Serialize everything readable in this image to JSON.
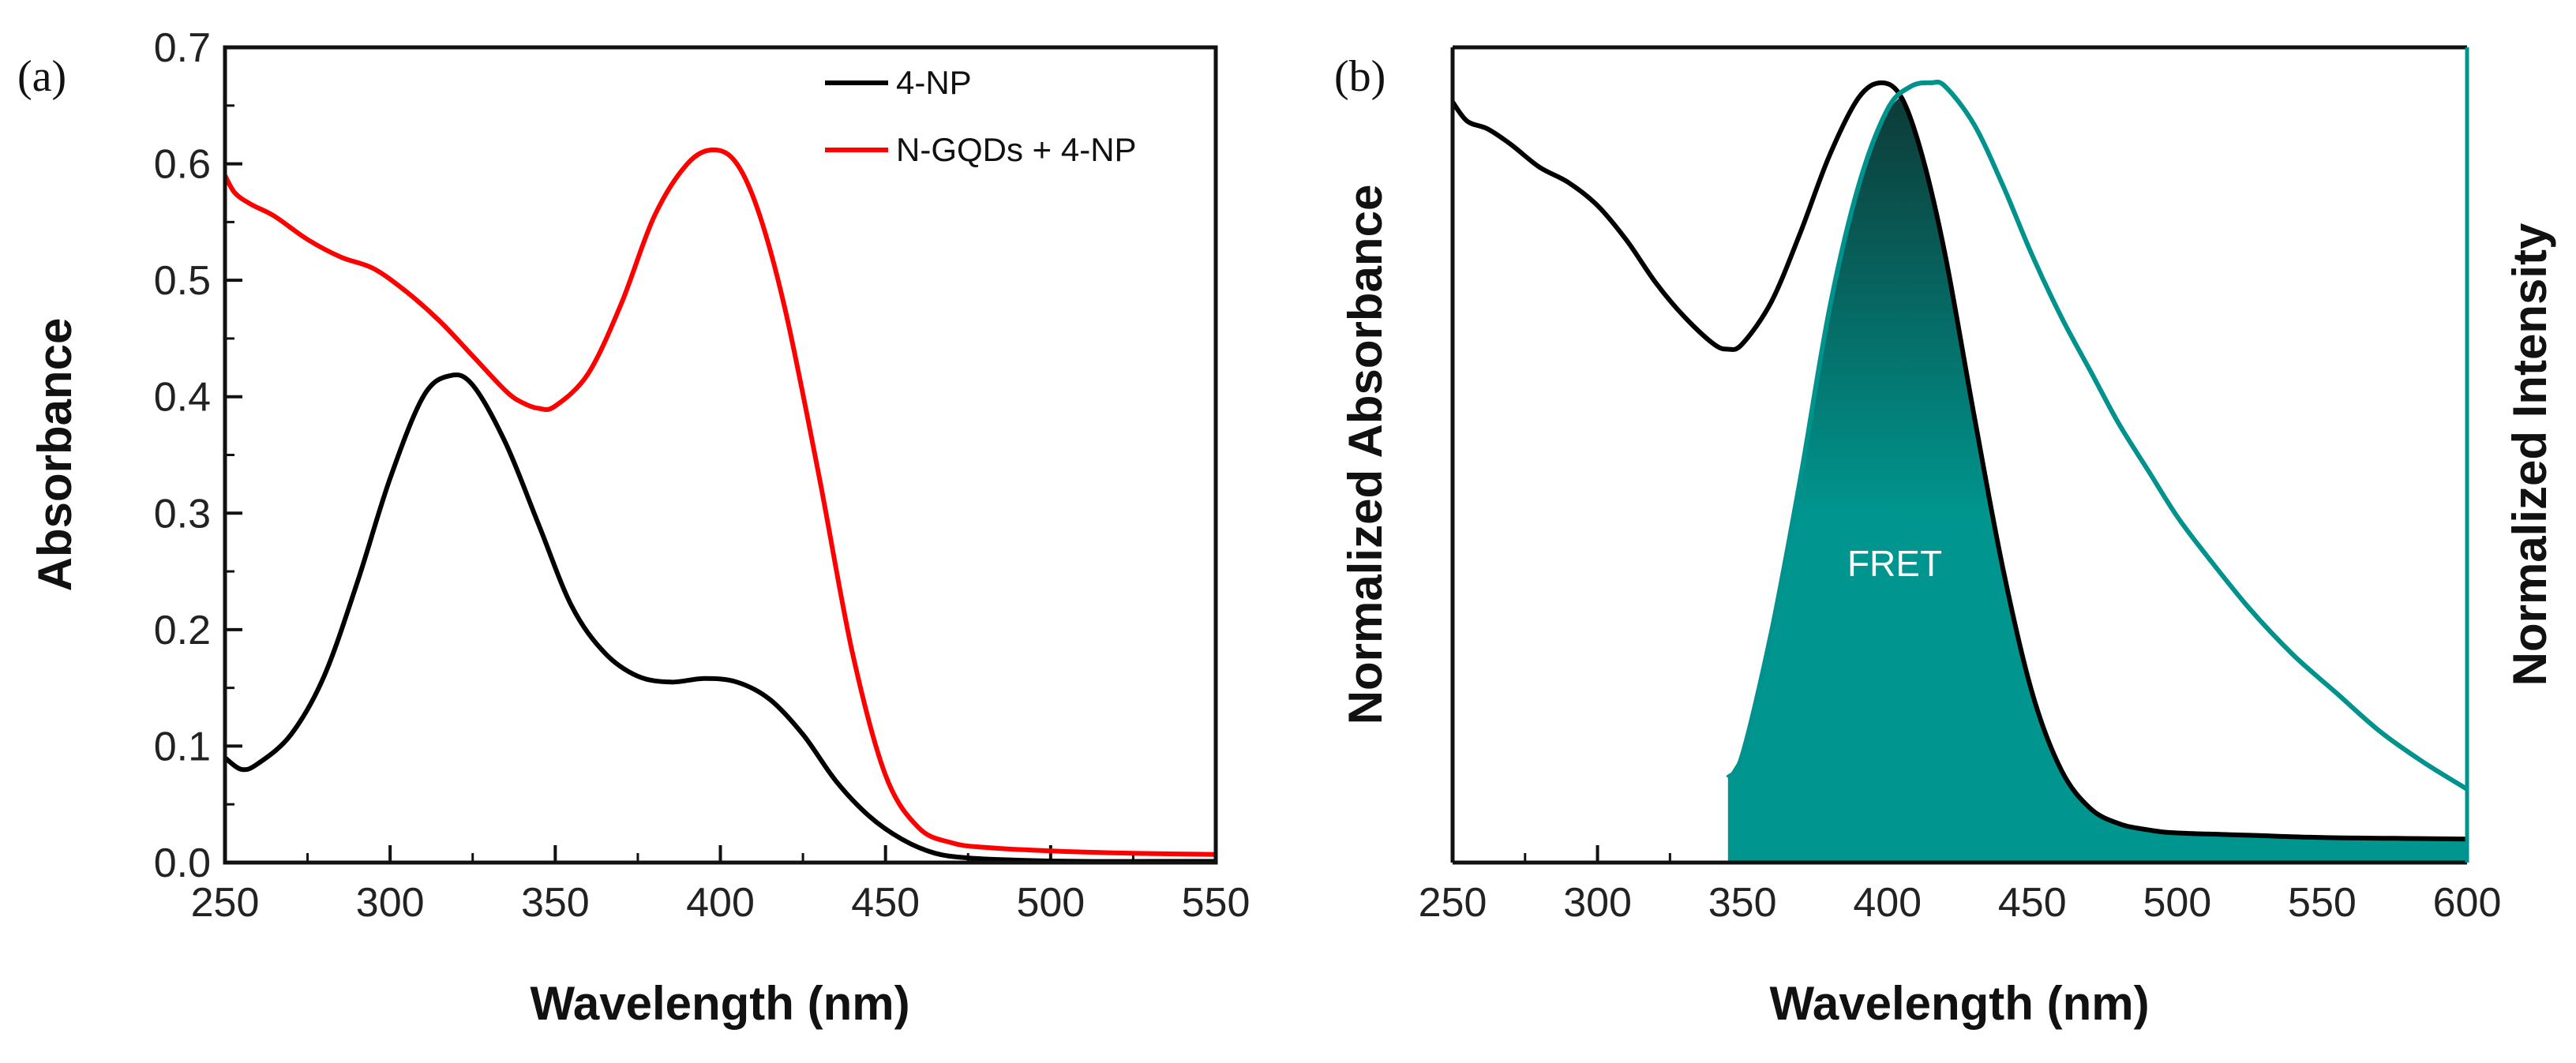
{
  "chart_data": [
    {
      "panel_label": "(a)",
      "type": "line",
      "xlabel": "Wavelength (nm)",
      "ylabel": "Absorbance",
      "xlim": [
        250,
        550
      ],
      "ylim": [
        0.0,
        0.7
      ],
      "xticks": [
        "250",
        "300",
        "350",
        "400",
        "450",
        "500",
        "550"
      ],
      "yticks": [
        "0.0",
        "0.1",
        "0.2",
        "0.3",
        "0.4",
        "0.5",
        "0.6",
        "0.7"
      ],
      "legend_position": "top-right",
      "series": [
        {
          "name": "4-NP",
          "color": "#000000",
          "x": [
            250,
            255,
            260,
            270,
            280,
            290,
            300,
            310,
            318,
            325,
            335,
            345,
            355,
            365,
            375,
            385,
            395,
            405,
            415,
            425,
            435,
            445,
            455,
            465,
            475,
            490,
            510,
            530,
            550
          ],
          "y": [
            0.09,
            0.08,
            0.085,
            0.11,
            0.16,
            0.24,
            0.33,
            0.4,
            0.418,
            0.41,
            0.36,
            0.29,
            0.22,
            0.18,
            0.16,
            0.155,
            0.158,
            0.155,
            0.14,
            0.11,
            0.07,
            0.04,
            0.02,
            0.008,
            0.004,
            0.002,
            0.001,
            0.001,
            0.001
          ]
        },
        {
          "name": "N-GQDs + 4-NP",
          "color": "#ff0000",
          "x": [
            250,
            253,
            258,
            265,
            275,
            285,
            295,
            305,
            315,
            325,
            335,
            340,
            345,
            350,
            360,
            370,
            380,
            390,
            398,
            405,
            412,
            420,
            430,
            440,
            450,
            460,
            470,
            480,
            500,
            525,
            550
          ],
          "y": [
            0.59,
            0.575,
            0.565,
            0.555,
            0.535,
            0.52,
            0.51,
            0.49,
            0.465,
            0.435,
            0.405,
            0.395,
            0.39,
            0.392,
            0.42,
            0.48,
            0.555,
            0.6,
            0.612,
            0.6,
            0.555,
            0.47,
            0.33,
            0.18,
            0.075,
            0.03,
            0.017,
            0.013,
            0.01,
            0.008,
            0.007
          ]
        }
      ]
    },
    {
      "panel_label": "(b)",
      "type": "line",
      "xlabel": "Wavelength (nm)",
      "ylabel": "Normalized Absorbance",
      "y2label": "Normalized Intensity",
      "xlim": [
        250,
        600
      ],
      "ylim": [
        0,
        1
      ],
      "xticks": [
        "250",
        "300",
        "350",
        "400",
        "450",
        "500",
        "550",
        "600"
      ],
      "annotation": "FRET",
      "fill_color": "#00968f",
      "fill_dark_color": "#0d3b38",
      "series": [
        {
          "name": "Normalized Absorbance",
          "color": "#000000",
          "axis": "left",
          "x": [
            250,
            255,
            262,
            270,
            280,
            290,
            300,
            310,
            320,
            330,
            340,
            345,
            350,
            360,
            370,
            380,
            390,
            398,
            405,
            412,
            420,
            430,
            440,
            450,
            460,
            470,
            480,
            490,
            500,
            525,
            550,
            575,
            600
          ],
          "y": [
            0.97,
            0.945,
            0.935,
            0.915,
            0.885,
            0.865,
            0.835,
            0.79,
            0.735,
            0.69,
            0.655,
            0.648,
            0.655,
            0.71,
            0.8,
            0.9,
            0.975,
            0.995,
            0.975,
            0.9,
            0.77,
            0.56,
            0.36,
            0.2,
            0.1,
            0.05,
            0.03,
            0.022,
            0.018,
            0.015,
            0.012,
            0.011,
            0.01
          ]
        },
        {
          "name": "Normalized Intensity",
          "color": "#00928c",
          "axis": "right",
          "x": [
            345,
            350,
            360,
            370,
            380,
            390,
            400,
            408,
            415,
            420,
            430,
            440,
            450,
            460,
            470,
            480,
            490,
            500,
            510,
            525,
            540,
            555,
            570,
            585,
            600
          ],
          "y": [
            0.09,
            0.12,
            0.28,
            0.48,
            0.7,
            0.86,
            0.96,
            0.99,
            0.995,
            0.99,
            0.94,
            0.86,
            0.77,
            0.69,
            0.62,
            0.55,
            0.49,
            0.43,
            0.38,
            0.31,
            0.25,
            0.2,
            0.15,
            0.11,
            0.075
          ]
        }
      ]
    }
  ]
}
